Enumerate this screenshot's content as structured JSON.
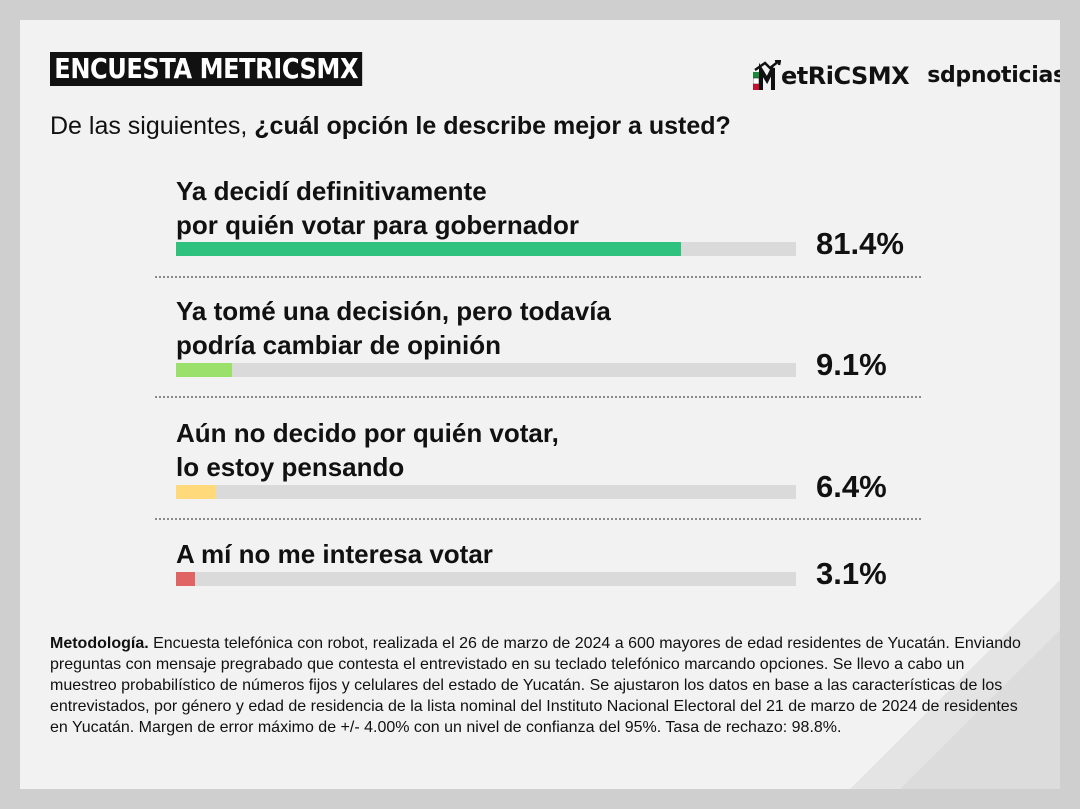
{
  "header": {
    "badge": "ENCUESTA METRICSMX",
    "logo_metrics": "etRiCSMX",
    "logo_sdp": "sdpnoticias"
  },
  "question": {
    "prefix": "De las siguientes, ",
    "bold": "¿cuál opción le describe mejor a usted?"
  },
  "chart_data": {
    "type": "bar",
    "orientation": "horizontal",
    "categories": [
      [
        "Ya decidí definitivamente",
        "por quién votar para gobernador"
      ],
      [
        "Ya tomé una decisión, pero todavía",
        "podría cambiar de opinión"
      ],
      [
        "Aún no decido por quién votar,",
        "lo estoy pensando"
      ],
      [
        "A mí no me interesa votar"
      ]
    ],
    "values": [
      81.4,
      9.1,
      6.4,
      3.1
    ],
    "value_labels": [
      "81.4%",
      "9.1%",
      "6.4%",
      "3.1%"
    ],
    "colors": [
      "#2ec27e",
      "#9be06b",
      "#ffd97a",
      "#e06464"
    ],
    "track_color": "#dadada",
    "xlim": [
      0,
      100
    ]
  },
  "methodology": {
    "label": "Metodología.",
    "text": " Encuesta telefónica con robot, realizada el 26 de marzo de 2024 a 600 mayores de edad residentes de Yucatán. Enviando preguntas con mensaje pregrabado que contesta el entrevistado en su teclado telefónico marcando opciones. Se llevo a cabo un muestreo probabilístico de números fijos y celulares del estado de Yucatán. Se ajustaron los datos en base a las características de los entrevistados, por género y edad de residencia de la lista nominal del Instituto Nacional Electoral del 21 de marzo de 2024 de residentes en Yucatán. Margen de error máximo de +/- 4.00% con un nivel de confianza del 95%. Tasa de rechazo: 98.8%."
  }
}
